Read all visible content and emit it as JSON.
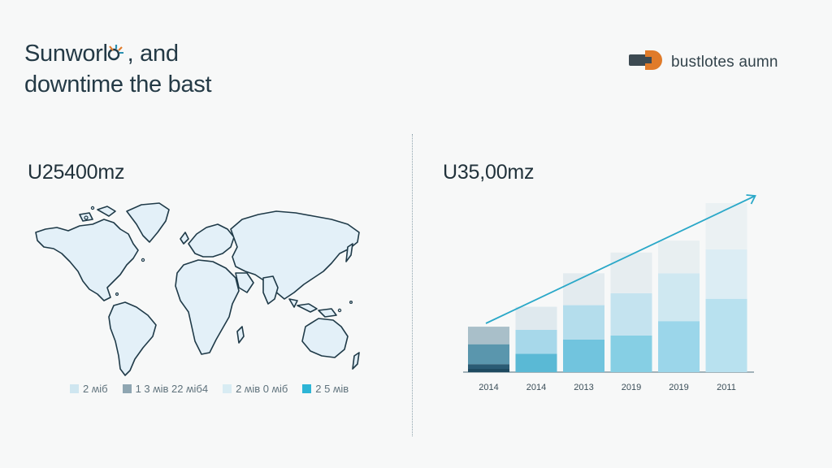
{
  "header": {
    "title_line1": "Sunworl",
    "title_line1_end": ", and",
    "title_line2": "downtime the bast",
    "brand": "bustlotes aumn",
    "brand_colors": {
      "dark": "#3d4a52",
      "accent": "#e07b2a"
    }
  },
  "left_panel": {
    "stat": "U25400mz",
    "map_icon": "world-map",
    "map_fill": "#e3f0f8",
    "map_stroke": "#1f3a48",
    "legend": [
      {
        "label": "2 ʍiб",
        "color": "#cfe6f0"
      },
      {
        "label": "1 3 ʍiв 22 ʍiб4",
        "color": "#8fa6b2"
      },
      {
        "label": "2 ʍiв  0 ʍiб",
        "color": "#d8ecf3"
      },
      {
        "label": "2 5 ʍiв",
        "color": "#2db5d6"
      }
    ]
  },
  "right_panel": {
    "stat": "U35,00mz"
  },
  "chart_data": {
    "type": "bar",
    "stacked": true,
    "categories": [
      "2014",
      "2014",
      "2013",
      "2019",
      "2019",
      "2011"
    ],
    "series": [
      {
        "values": [
          10,
          23,
          41,
          46,
          64,
          92
        ],
        "color": "#b3ccd7"
      },
      {
        "values": [
          25,
          30,
          43,
          53,
          60,
          62
        ],
        "color": "#cfe2ec"
      },
      {
        "values": [
          22,
          29,
          40,
          51,
          41,
          58
        ],
        "color": "#e4eef3"
      }
    ],
    "series_colors_alt": [
      "#2a5b74",
      "#5a96ad",
      "#8fb0c0"
    ],
    "trend_arrow": true,
    "trend_color": "#2aa8c8",
    "ylim": [
      0,
      212
    ],
    "grid": false,
    "title": "",
    "xlabel": "",
    "ylabel": ""
  }
}
